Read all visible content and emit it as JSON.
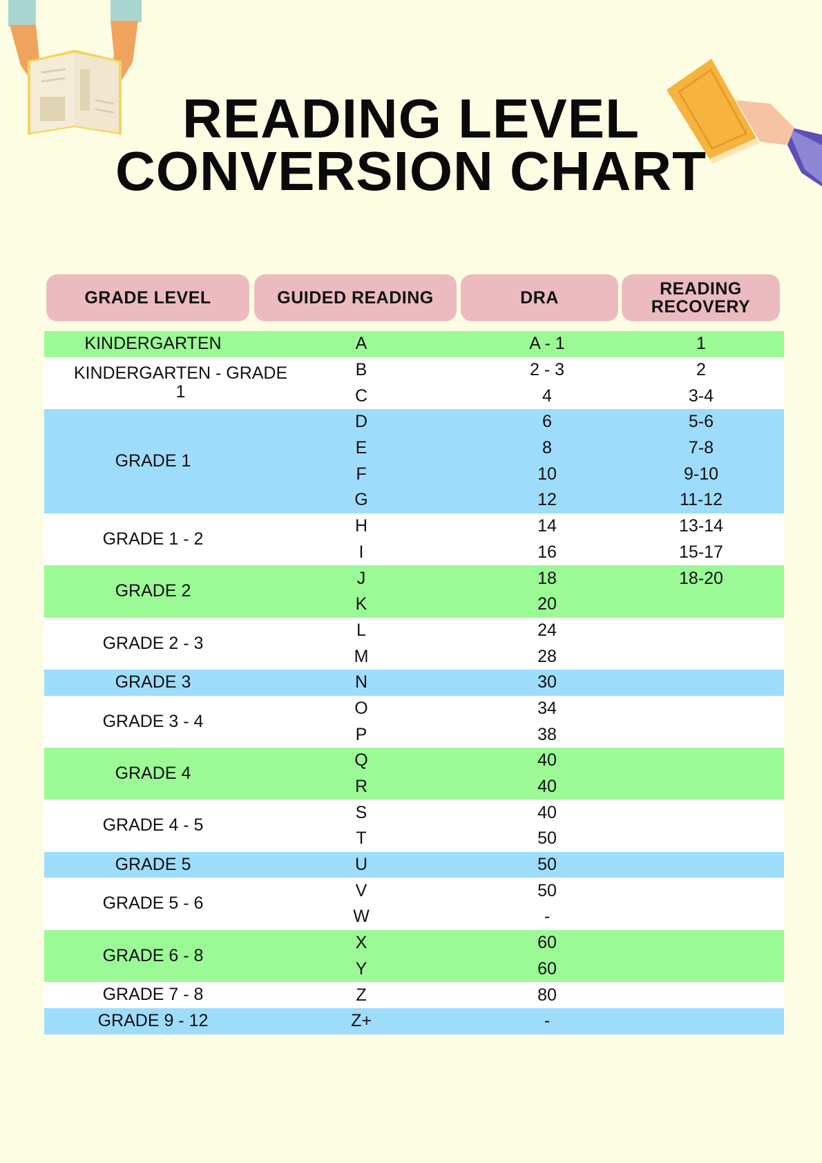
{
  "title": {
    "line1": "READING LEVEL",
    "line2": "CONVERSION CHART"
  },
  "headers": [
    "GRADE LEVEL",
    "GUIDED READING",
    "DRA",
    "READING RECOVERY"
  ],
  "colors": {
    "background": "#fdfde4",
    "header": "#ebbbc0",
    "green": "#9bfa96",
    "blue": "#9edcfb",
    "white": "#ffffff"
  },
  "groups": [
    {
      "grade": "KINDERGARTEN",
      "color": "green",
      "rows": [
        [
          "A",
          "A - 1",
          "1"
        ]
      ]
    },
    {
      "grade": "KINDERGARTEN - GRADE 1",
      "color": "white",
      "rows": [
        [
          "B",
          "2 - 3",
          "2"
        ],
        [
          "C",
          "4",
          "3-4"
        ]
      ]
    },
    {
      "grade": "GRADE 1",
      "color": "blue",
      "rows": [
        [
          "D",
          "6",
          "5-6"
        ],
        [
          "E",
          "8",
          "7-8"
        ],
        [
          "F",
          "10",
          "9-10"
        ],
        [
          "G",
          "12",
          "11-12"
        ]
      ]
    },
    {
      "grade": "GRADE 1 - 2",
      "color": "white",
      "rows": [
        [
          "H",
          "14",
          "13-14"
        ],
        [
          "I",
          "16",
          "15-17"
        ]
      ]
    },
    {
      "grade": "GRADE 2",
      "color": "green",
      "rows": [
        [
          "J",
          "18",
          "18-20"
        ],
        [
          "K",
          "20",
          ""
        ]
      ]
    },
    {
      "grade": "GRADE 2 - 3",
      "color": "white",
      "rows": [
        [
          "L",
          "24",
          ""
        ],
        [
          "M",
          "28",
          ""
        ]
      ]
    },
    {
      "grade": "GRADE 3",
      "color": "blue",
      "rows": [
        [
          "N",
          "30",
          ""
        ]
      ]
    },
    {
      "grade": "GRADE 3 - 4",
      "color": "white",
      "rows": [
        [
          "O",
          "34",
          ""
        ],
        [
          "P",
          "38",
          ""
        ]
      ]
    },
    {
      "grade": "GRADE 4",
      "color": "green",
      "rows": [
        [
          "Q",
          "40",
          ""
        ],
        [
          "R",
          "40",
          ""
        ]
      ]
    },
    {
      "grade": "GRADE 4 - 5",
      "color": "white",
      "rows": [
        [
          "S",
          "40",
          ""
        ],
        [
          "T",
          "50",
          ""
        ]
      ]
    },
    {
      "grade": "GRADE 5",
      "color": "blue",
      "rows": [
        [
          "U",
          "50",
          ""
        ]
      ]
    },
    {
      "grade": "GRADE 5 - 6",
      "color": "white",
      "rows": [
        [
          "V",
          "50",
          ""
        ],
        [
          "W",
          "-",
          ""
        ]
      ]
    },
    {
      "grade": "GRADE 6 - 8",
      "color": "green",
      "rows": [
        [
          "X",
          "60",
          ""
        ],
        [
          "Y",
          "60",
          ""
        ]
      ]
    },
    {
      "grade": "GRADE 7 - 8",
      "color": "white",
      "rows": [
        [
          "Z",
          "80",
          ""
        ]
      ]
    },
    {
      "grade": "GRADE 9 - 12",
      "color": "blue",
      "rows": [
        [
          "Z+",
          "-",
          ""
        ]
      ]
    }
  ]
}
